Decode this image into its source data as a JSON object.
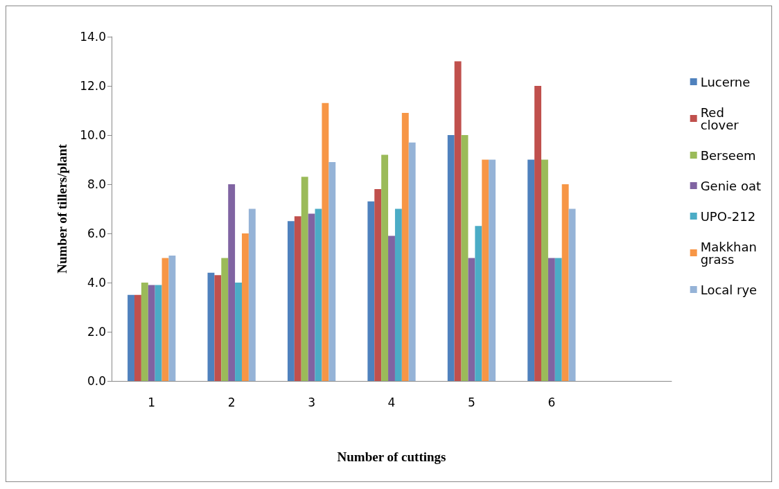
{
  "chart_data": {
    "type": "bar",
    "xlabel": "Number of cuttings",
    "ylabel": "Number of tillers/plant",
    "categories": [
      "1",
      "2",
      "3",
      "4",
      "5",
      "6",
      null
    ],
    "series": [
      {
        "name": "Lucerne",
        "color": "#4f81bd",
        "values": [
          3.5,
          4.4,
          6.5,
          7.3,
          10.0,
          9.0,
          null
        ]
      },
      {
        "name": "Red clover",
        "color": "#c0504d",
        "values": [
          3.5,
          4.3,
          6.7,
          7.8,
          13.0,
          12.0,
          null
        ]
      },
      {
        "name": "Berseem",
        "color": "#9bbb59",
        "values": [
          4.0,
          5.0,
          8.3,
          9.2,
          10.0,
          9.0,
          null
        ]
      },
      {
        "name": "Genie oat",
        "color": "#8064a2",
        "values": [
          3.9,
          8.0,
          6.8,
          5.9,
          5.0,
          5.0,
          null
        ]
      },
      {
        "name": "UPO-212",
        "color": "#4bacc6",
        "values": [
          3.9,
          4.0,
          7.0,
          7.0,
          6.3,
          5.0,
          null
        ]
      },
      {
        "name": "Makkhan grass",
        "color": "#f79646",
        "values": [
          5.0,
          6.0,
          11.3,
          10.9,
          9.0,
          8.0,
          null
        ]
      },
      {
        "name": "Local rye",
        "color": "#95b3d7",
        "values": [
          5.1,
          7.0,
          8.9,
          9.7,
          9.0,
          7.0,
          null
        ]
      }
    ],
    "ylim": [
      0,
      14
    ],
    "yticks": [
      {
        "value": 0,
        "label": "0.0"
      },
      {
        "value": 2,
        "label": "2.0"
      },
      {
        "value": 4,
        "label": "4.0"
      },
      {
        "value": 6,
        "label": "6.0"
      },
      {
        "value": 8,
        "label": "8.0"
      },
      {
        "value": 10,
        "label": "10.0"
      },
      {
        "value": 12,
        "label": "12.0"
      },
      {
        "value": 14,
        "label": "14.0"
      }
    ],
    "grid": false,
    "legend": "right"
  }
}
